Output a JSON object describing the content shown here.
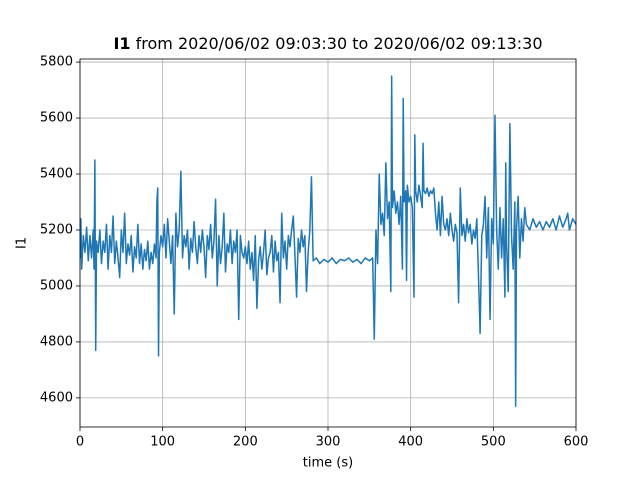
{
  "chart_data": {
    "type": "line",
    "title": {
      "bold": "I1",
      "rest": "from 2020/06/02 09:03:30 to 2020/06/02 09:13:30"
    },
    "x_label": "time (s)",
    "y_label": "I1",
    "color": "#1f77b4",
    "grid": true,
    "xlim": [
      0,
      600
    ],
    "ylim": [
      4496,
      5811
    ],
    "xticks": [
      0,
      100,
      200,
      300,
      400,
      500,
      600
    ],
    "yticks": [
      4600,
      4800,
      5000,
      5200,
      5400,
      5600,
      5800
    ],
    "x": [
      0,
      1,
      2,
      4,
      6,
      8,
      10,
      12,
      14,
      16,
      17,
      18,
      19,
      20,
      22,
      24,
      26,
      28,
      30,
      32,
      34,
      36,
      38,
      40,
      42,
      44,
      46,
      48,
      50,
      52,
      54,
      56,
      58,
      60,
      62,
      64,
      66,
      68,
      70,
      72,
      74,
      76,
      78,
      80,
      82,
      84,
      86,
      88,
      90,
      92,
      93,
      94,
      95,
      96,
      98,
      100,
      102,
      104,
      106,
      108,
      110,
      112,
      114,
      116,
      118,
      120,
      122,
      124,
      126,
      128,
      130,
      132,
      134,
      136,
      138,
      140,
      142,
      144,
      146,
      148,
      150,
      152,
      154,
      156,
      158,
      160,
      162,
      164,
      166,
      168,
      170,
      172,
      174,
      176,
      178,
      180,
      182,
      184,
      186,
      188,
      190,
      192,
      194,
      196,
      198,
      200,
      202,
      204,
      206,
      208,
      210,
      212,
      214,
      216,
      218,
      220,
      222,
      224,
      226,
      228,
      230,
      232,
      234,
      236,
      238,
      240,
      242,
      244,
      246,
      248,
      250,
      252,
      254,
      256,
      258,
      260,
      262,
      264,
      266,
      268,
      270,
      272,
      274,
      276,
      278,
      280,
      282,
      286,
      290,
      295,
      300,
      305,
      310,
      315,
      320,
      325,
      330,
      335,
      340,
      345,
      350,
      354,
      356,
      358,
      360,
      362,
      364,
      366,
      368,
      370,
      372,
      374,
      376,
      377,
      378,
      380,
      382,
      384,
      386,
      388,
      390,
      391,
      392,
      394,
      395,
      396,
      398,
      400,
      402,
      404,
      405,
      406,
      408,
      410,
      412,
      414,
      415,
      416,
      418,
      420,
      422,
      424,
      426,
      428,
      430,
      432,
      434,
      436,
      438,
      440,
      442,
      444,
      446,
      448,
      450,
      452,
      454,
      456,
      458,
      460,
      462,
      464,
      466,
      468,
      470,
      472,
      474,
      476,
      478,
      480,
      482,
      484,
      486,
      488,
      490,
      492,
      494,
      496,
      498,
      500,
      502,
      504,
      506,
      508,
      510,
      512,
      514,
      515,
      516,
      518,
      520,
      522,
      524,
      526,
      527,
      528,
      530,
      532,
      534,
      536,
      538,
      540,
      544,
      548,
      552,
      556,
      560,
      564,
      568,
      572,
      576,
      580,
      584,
      588,
      590,
      592,
      596,
      600
    ],
    "values": [
      5100,
      5240,
      5060,
      5180,
      5120,
      5210,
      5090,
      5180,
      5100,
      5200,
      5060,
      5450,
      4770,
      5160,
      5120,
      5200,
      5080,
      5160,
      5120,
      5220,
      5060,
      5180,
      5120,
      5250,
      5080,
      5160,
      5100,
      5030,
      5200,
      5120,
      5260,
      5080,
      5150,
      5110,
      5180,
      5050,
      5140,
      5100,
      5220,
      5080,
      5150,
      5060,
      5130,
      5090,
      5160,
      5060,
      5120,
      5080,
      5150,
      5100,
      5300,
      5350,
      4750,
      5120,
      5180,
      5140,
      5220,
      5100,
      5240,
      5160,
      5080,
      5180,
      4900,
      5260,
      5140,
      5200,
      5410,
      5100,
      5180,
      5140,
      5200,
      5060,
      5170,
      5120,
      5230,
      5140,
      5080,
      5180,
      5120,
      5200,
      5140,
      5030,
      5180,
      5130,
      5220,
      5100,
      5160,
      5310,
      5000,
      5180,
      5080,
      5140,
      5260,
      5050,
      5150,
      5120,
      5200,
      5080,
      5160,
      5120,
      5200,
      4880,
      5180,
      5120,
      5100,
      5140,
      5080,
      5160,
      5060,
      5120,
      5020,
      5180,
      4920,
      5090,
      5140,
      5060,
      5120,
      5200,
      5040,
      5100,
      5120,
      5180,
      5050,
      5160,
      5090,
      5120,
      4940,
      5260,
      5100,
      5160,
      5060,
      5180,
      5140,
      5200,
      5250,
      5110,
      4960,
      5170,
      5120,
      5200,
      5140,
      5180,
      4980,
      5120,
      5200,
      5390,
      5090,
      5100,
      5080,
      5095,
      5085,
      5100,
      5080,
      5095,
      5090,
      5100,
      5085,
      5095,
      5080,
      5100,
      5090,
      5100,
      4810,
      5200,
      5080,
      5400,
      5220,
      5260,
      5180,
      5440,
      5240,
      5300,
      4980,
      5750,
      5280,
      5340,
      5260,
      5300,
      5220,
      5320,
      5060,
      5670,
      5300,
      5340,
      5020,
      5360,
      5300,
      5320,
      5280,
      4960,
      5540,
      5340,
      5300,
      5360,
      5320,
      5280,
      5510,
      5340,
      5330,
      5350,
      5320,
      5340,
      5330,
      5350,
      5260,
      5200,
      5300,
      5180,
      5320,
      5220,
      5200,
      5240,
      5180,
      5260,
      5200,
      5160,
      5220,
      5190,
      4940,
      5350,
      5180,
      5220,
      5160,
      5240,
      5190,
      5220,
      5150,
      5200,
      5170,
      5240,
      5040,
      4830,
      5180,
      5220,
      5320,
      5100,
      5280,
      4880,
      5240,
      5150,
      5610,
      5200,
      5060,
      5280,
      5100,
      5240,
      4960,
      5440,
      5150,
      4980,
      5580,
      5180,
      5060,
      5300,
      4570,
      5200,
      5320,
      5100,
      5240,
      5160,
      5280,
      5220,
      5200,
      5240,
      5210,
      5230,
      5200,
      5230,
      5210,
      5240,
      5200,
      5250,
      5210,
      5240,
      5260,
      5200,
      5240,
      5220
    ]
  }
}
